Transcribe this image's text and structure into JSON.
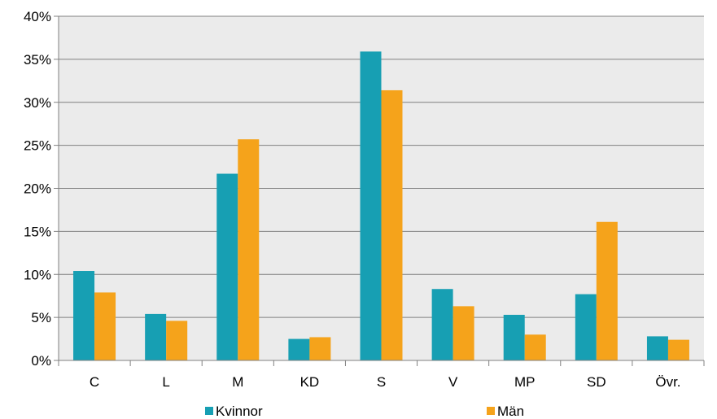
{
  "chart_data": {
    "type": "bar",
    "categories": [
      "C",
      "L",
      "M",
      "KD",
      "S",
      "V",
      "MP",
      "SD",
      "Övr."
    ],
    "series": [
      {
        "name": "Kvinnor",
        "color": "#179fb3",
        "values": [
          10.4,
          5.4,
          21.7,
          2.5,
          35.9,
          8.3,
          5.3,
          7.7,
          2.8
        ]
      },
      {
        "name": "Män",
        "color": "#f5a31b",
        "values": [
          7.9,
          4.6,
          25.7,
          2.7,
          31.4,
          6.3,
          3.0,
          16.1,
          2.4
        ]
      }
    ],
    "ylim": [
      0,
      40
    ],
    "yticks": [
      0,
      5,
      10,
      15,
      20,
      25,
      30,
      35,
      40
    ],
    "ytick_labels": [
      "0%",
      "5%",
      "10%",
      "15%",
      "20%",
      "25%",
      "30%",
      "35%",
      "40%"
    ],
    "grid": true,
    "legend_position": "bottom",
    "plot_background": "#ebebeb",
    "grid_color": "#808080"
  }
}
